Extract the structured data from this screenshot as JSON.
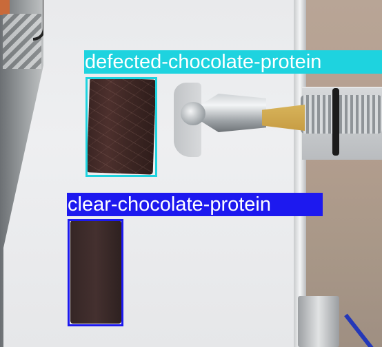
{
  "scene": {
    "description_colors": {
      "defected_box": "#1ed3df",
      "clear_box": "#1d19ef",
      "label_text": "#ffffff"
    }
  },
  "detections": [
    {
      "label": "defected-chocolate-protein",
      "color": "#1ed3df"
    },
    {
      "label": "clear-chocolate-protein",
      "color": "#1d19ef"
    }
  ]
}
